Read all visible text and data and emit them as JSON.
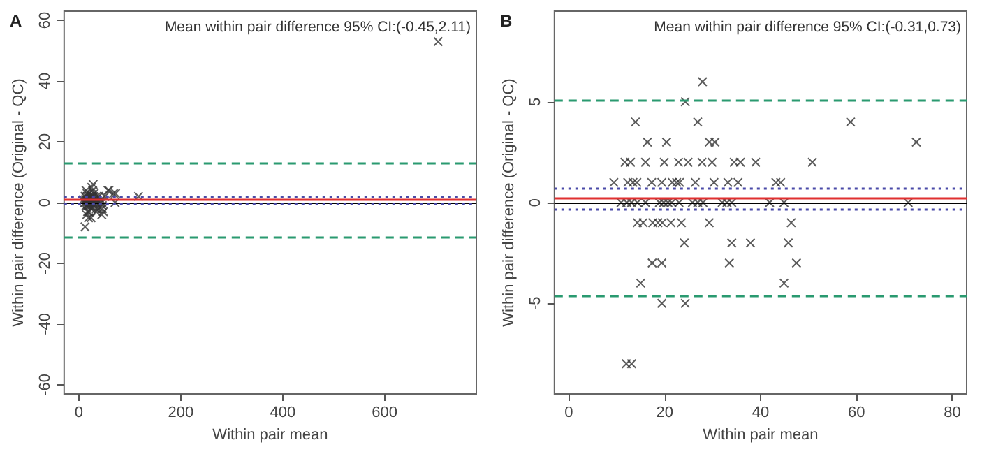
{
  "chart_data": [
    {
      "type": "scatter",
      "title": "A",
      "xlabel": "Within pair mean",
      "ylabel": "Within pair difference (Original - QC)",
      "annotations": [
        "Mean within pair difference 95% CI:(-0.45,2.11)"
      ],
      "marker": "cross",
      "grid": false,
      "xlim": [
        -29,
        780
      ],
      "xticks": [
        0,
        200,
        400,
        600
      ],
      "ylim": [
        -63,
        63
      ],
      "yticks": [
        -60,
        -40,
        -20,
        0,
        20,
        40,
        60
      ],
      "series": [
        {
          "color": "#333333",
          "x": [
            28,
            25,
            14,
            27,
            59,
            16,
            20,
            30,
            72,
            12,
            16,
            20,
            23,
            25,
            28,
            30,
            35,
            39,
            51,
            9,
            13,
            14,
            17,
            26,
            30,
            33,
            35,
            43,
            11,
            13,
            16,
            19,
            21,
            23,
            26,
            28,
            32,
            34,
            42,
            45,
            71,
            14,
            17,
            19,
            21,
            24,
            29,
            46,
            24,
            34,
            38,
            46,
            17,
            19,
            34,
            48,
            15,
            45,
            19,
            24,
            12,
            57,
            68,
            117,
            705
          ],
          "values": [
            6,
            5,
            4,
            4,
            4,
            3,
            3,
            3,
            3,
            2,
            2,
            2,
            2,
            2,
            2,
            2,
            2,
            2,
            2,
            1,
            1,
            1,
            1,
            1,
            1,
            1,
            1,
            1,
            0,
            0,
            0,
            0,
            0,
            0,
            0,
            0,
            0,
            0,
            0,
            0,
            0,
            -1,
            -1,
            -1,
            -1,
            -1,
            -1,
            -1,
            -2,
            -2,
            -2,
            -2,
            -3,
            -3,
            -3,
            -3,
            -4,
            -4,
            -5,
            -5,
            -8,
            4,
            3,
            2,
            53
          ]
        }
      ],
      "ref_lines": [
        {
          "axis": "y",
          "value": 0,
          "color": "#000000",
          "line_style": "solid"
        },
        {
          "axis": "y",
          "value": 0.83,
          "color": "#e03030",
          "line_style": "solid"
        },
        {
          "axis": "y",
          "value": 2.11,
          "color": "#4a4aa8",
          "line_style": "dotted"
        },
        {
          "axis": "y",
          "value": -0.45,
          "color": "#4a4aa8",
          "line_style": "dotted"
        },
        {
          "axis": "y",
          "value": 13.1,
          "color": "#2a9a70",
          "line_style": "dashed"
        },
        {
          "axis": "y",
          "value": -11.4,
          "color": "#2a9a70",
          "line_style": "dashed"
        }
      ]
    },
    {
      "type": "scatter",
      "title": "B",
      "xlabel": "Within pair mean",
      "ylabel": "Within pair difference (Original - QC)",
      "annotations": [
        "Mean within pair difference 95% CI:(-0.31,0.73)"
      ],
      "marker": "cross",
      "grid": false,
      "xlim": [
        -3,
        83
      ],
      "xticks": [
        0,
        20,
        40,
        60,
        80
      ],
      "ylim": [
        -9.5,
        9.5
      ],
      "yticks": [
        -5,
        0,
        5
      ],
      "series": [
        {
          "color": "#333333",
          "x": [
            27.9,
            24.3,
            13.9,
            26.9,
            58.8,
            16.4,
            20.4,
            29.3,
            30.5,
            72.5,
            11.7,
            12.9,
            16.0,
            19.9,
            22.9,
            24.9,
            27.8,
            29.9,
            34.5,
            35.8,
            39.0,
            50.8,
            9.4,
            12.3,
            13.4,
            14.2,
            17.3,
            19.4,
            21.6,
            22.5,
            23.1,
            26.4,
            30.3,
            33.2,
            35.3,
            43.2,
            44.2,
            10.9,
            12.1,
            13.1,
            14.3,
            16.0,
            18.9,
            19.8,
            20.7,
            21.5,
            23.0,
            25.8,
            26.9,
            28.0,
            32.0,
            33.0,
            34.0,
            41.9,
            44.9,
            70.8,
            14.3,
            15.5,
            17.5,
            18.6,
            19.5,
            21.3,
            23.5,
            29.3,
            46.4,
            24.1,
            34.0,
            37.9,
            45.8,
            17.4,
            19.4,
            33.5,
            47.5,
            15.0,
            44.9,
            19.4,
            24.3,
            12.0,
            13.1
          ],
          "values": [
            6,
            5,
            4,
            4,
            4,
            3,
            3,
            3,
            3,
            3,
            2,
            2,
            2,
            2,
            2,
            2,
            2,
            2,
            2,
            2,
            2,
            2,
            1,
            1,
            1,
            1,
            1,
            1,
            1,
            1,
            1,
            1,
            1,
            1,
            1,
            1,
            1,
            0,
            0,
            0,
            0,
            0,
            0,
            0,
            0,
            0,
            0,
            0,
            0,
            0,
            0,
            0,
            0,
            0,
            0,
            0,
            -1,
            -1,
            -1,
            -1,
            -1,
            -1,
            -1,
            -1,
            -1,
            -2,
            -2,
            -2,
            -2,
            -3,
            -3,
            -3,
            -3,
            -4,
            -4,
            -5,
            -5,
            -8,
            -8
          ]
        }
      ],
      "ref_lines": [
        {
          "axis": "y",
          "value": 0,
          "color": "#000000",
          "line_style": "solid"
        },
        {
          "axis": "y",
          "value": 0.21,
          "color": "#e03030",
          "line_style": "solid"
        },
        {
          "axis": "y",
          "value": 0.73,
          "color": "#4a4aa8",
          "line_style": "dotted"
        },
        {
          "axis": "y",
          "value": -0.31,
          "color": "#4a4aa8",
          "line_style": "dotted"
        },
        {
          "axis": "y",
          "value": 5.05,
          "color": "#2a9a70",
          "line_style": "dashed"
        },
        {
          "axis": "y",
          "value": -4.6,
          "color": "#2a9a70",
          "line_style": "dashed"
        }
      ]
    }
  ]
}
